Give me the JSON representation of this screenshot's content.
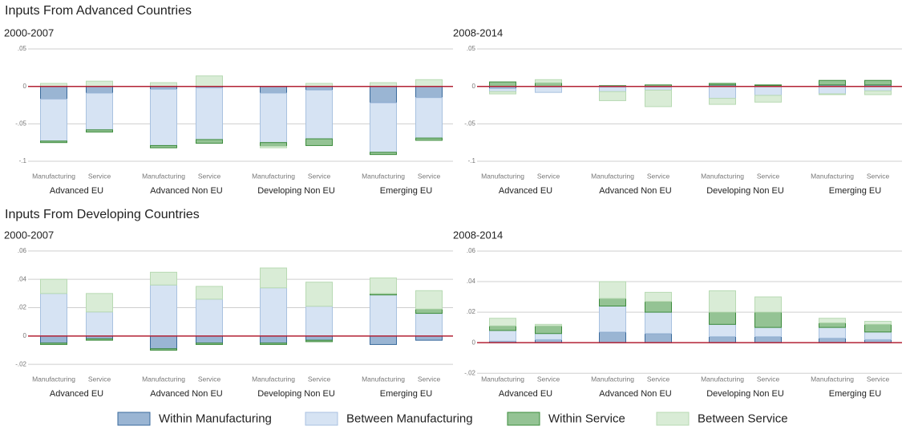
{
  "section_titles": [
    "Inputs From Advanced Countries",
    "Inputs From Developing Countries"
  ],
  "chart_data": {
    "type": "bar",
    "stacking": "diverging",
    "categories": [
      "Manufacturing",
      "Service",
      "Manufacturing",
      "Service",
      "Manufacturing",
      "Service",
      "Manufacturing",
      "Service"
    ],
    "groups": [
      "Advanced EU",
      "Advanced Non EU",
      "Developing Non EU",
      "Emerging EU"
    ],
    "panels": [
      {
        "title": "2000-2007",
        "ylim": [
          -0.105,
          0.06
        ],
        "yticks": [
          {
            "value": -0.1,
            "label": "-.1"
          },
          {
            "value": -0.05,
            "label": "-.05"
          },
          0,
          {
            "value": 0.05,
            "label": ".05"
          }
        ]
      },
      {
        "title": "2008-2014",
        "ylim": [
          -0.105,
          0.06
        ],
        "yticks": [
          {
            "value": -0.1,
            "label": "-.1"
          },
          {
            "value": -0.05,
            "label": "-.05"
          },
          0,
          {
            "value": 0.05,
            "label": ".05"
          }
        ]
      },
      {
        "title": "2000-2007",
        "ylim": [
          -0.025,
          0.065
        ],
        "yticks": [
          {
            "value": -0.02,
            "label": "-.02"
          },
          0,
          {
            "value": 0.02,
            "label": ".02"
          },
          {
            "value": 0.04,
            "label": ".04"
          },
          {
            "value": 0.06,
            "label": ".06"
          }
        ]
      },
      {
        "title": "2008-2014",
        "ylim": [
          -0.022,
          0.065
        ],
        "yticks": [
          {
            "value": -0.02,
            "label": "-.02"
          },
          0,
          {
            "value": 0.02,
            "label": ".02"
          },
          {
            "value": 0.04,
            "label": ".04"
          },
          {
            "value": 0.06,
            "label": ".06"
          }
        ]
      }
    ],
    "series": [
      {
        "name": "Within Manufacturing",
        "color": "#9ab5d3",
        "edge": "#3a6a9c",
        "values": [
          [
            -0.017,
            -0.009,
            -0.004,
            -0.002,
            -0.009,
            -0.005,
            -0.022,
            -0.015
          ],
          [
            -0.003,
            -0.001,
            -0.001,
            -0.001,
            0.002,
            0.001,
            0.002,
            0.002
          ],
          [
            -0.005,
            -0.002,
            -0.009,
            -0.005,
            -0.005,
            -0.003,
            -0.006,
            -0.003
          ],
          [
            0.001,
            0.002,
            0.007,
            0.006,
            0.004,
            0.004,
            0.003,
            0.002
          ]
        ]
      },
      {
        "name": "Between Manufacturing",
        "color": "#d6e3f3",
        "edge": "#a9c2e0",
        "values": [
          [
            -0.056,
            -0.049,
            -0.075,
            -0.069,
            -0.066,
            -0.065,
            -0.066,
            -0.054
          ],
          [
            -0.004,
            -0.007,
            -0.006,
            -0.004,
            -0.016,
            -0.012,
            -0.01,
            -0.006
          ],
          [
            0.03,
            0.017,
            0.036,
            0.026,
            0.034,
            0.021,
            0.029,
            0.016
          ],
          [
            0.007,
            0.004,
            0.017,
            0.014,
            0.008,
            0.006,
            0.007,
            0.005
          ]
        ]
      },
      {
        "name": "Within Service",
        "color": "#94c394",
        "edge": "#3d8c3d",
        "values": [
          [
            -0.002,
            -0.003,
            -0.003,
            -0.005,
            -0.005,
            -0.009,
            -0.003,
            -0.003
          ],
          [
            0.006,
            0.005,
            0.001,
            0.002,
            0.002,
            0.001,
            0.006,
            0.006
          ],
          [
            -0.001,
            -0.001,
            -0.001,
            -0.001,
            -0.001,
            -0.001,
            0.001,
            0.003
          ],
          [
            0.003,
            0.005,
            0.005,
            0.007,
            0.008,
            0.01,
            0.003,
            0.005
          ]
        ]
      },
      {
        "name": "Between Service",
        "color": "#d9ecd6",
        "edge": "#b8dab3",
        "values": [
          [
            0.004,
            0.007,
            0.005,
            0.014,
            -0.002,
            0.004,
            0.005,
            0.009
          ],
          [
            -0.003,
            0.004,
            -0.012,
            -0.022,
            -0.008,
            -0.009,
            -0.001,
            -0.005
          ],
          [
            0.01,
            0.013,
            0.009,
            0.009,
            0.014,
            0.017,
            0.011,
            0.013
          ],
          [
            0.005,
            0.001,
            0.011,
            0.006,
            0.014,
            0.01,
            0.003,
            0.002
          ]
        ]
      }
    ]
  }
}
